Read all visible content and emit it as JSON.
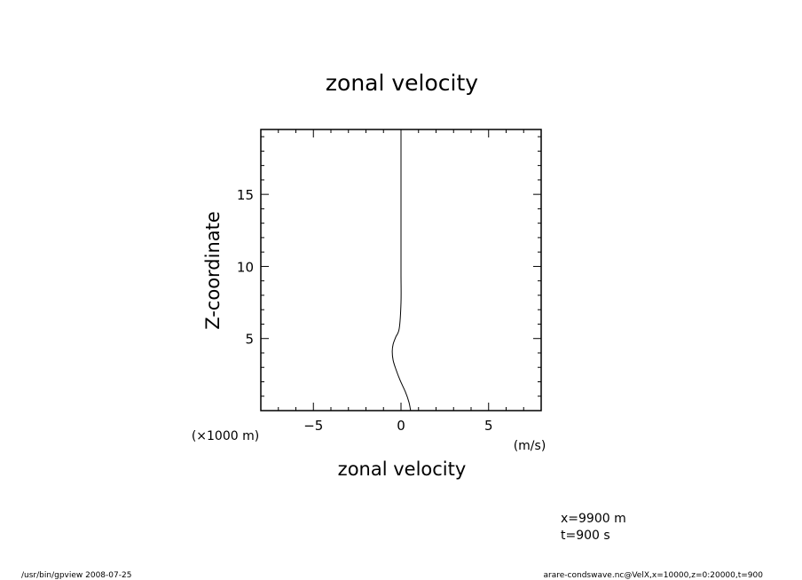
{
  "chart_data": {
    "type": "line",
    "title": "zonal velocity",
    "xlabel": "zonal velocity",
    "ylabel": "Z-coordinate",
    "x_unit": "(m/s)",
    "y_unit": "(×1000 m)",
    "xlim": [
      -8,
      8
    ],
    "ylim": [
      0,
      19.5
    ],
    "x_ticks": [
      {
        "value": -5,
        "label": "−5"
      },
      {
        "value": 0,
        "label": "0"
      },
      {
        "value": 5,
        "label": "5"
      }
    ],
    "y_ticks": [
      {
        "value": 5,
        "label": "5"
      },
      {
        "value": 10,
        "label": "10"
      },
      {
        "value": 15,
        "label": "15"
      }
    ],
    "grid": false,
    "series": [
      {
        "color": "#000000",
        "x": [
          0.55,
          0.45,
          0.25,
          -0.05,
          -0.3,
          -0.45,
          -0.5,
          -0.45,
          -0.3,
          -0.1,
          0.0,
          0.0,
          0.0,
          0.0,
          0.0,
          0.0
        ],
        "y": [
          0.0,
          0.6,
          1.3,
          2.1,
          2.9,
          3.5,
          4.1,
          4.6,
          5.1,
          5.7,
          7.5,
          9.5,
          12.0,
          15.0,
          17.5,
          19.5
        ]
      }
    ],
    "annotations": [
      "x=9900  m",
      "t=900  s"
    ]
  },
  "footer": {
    "left": "/usr/bin/gpview   2008-07-25",
    "right": "arare-condswave.nc@VelX,x=10000,z=0:20000,t=900"
  }
}
